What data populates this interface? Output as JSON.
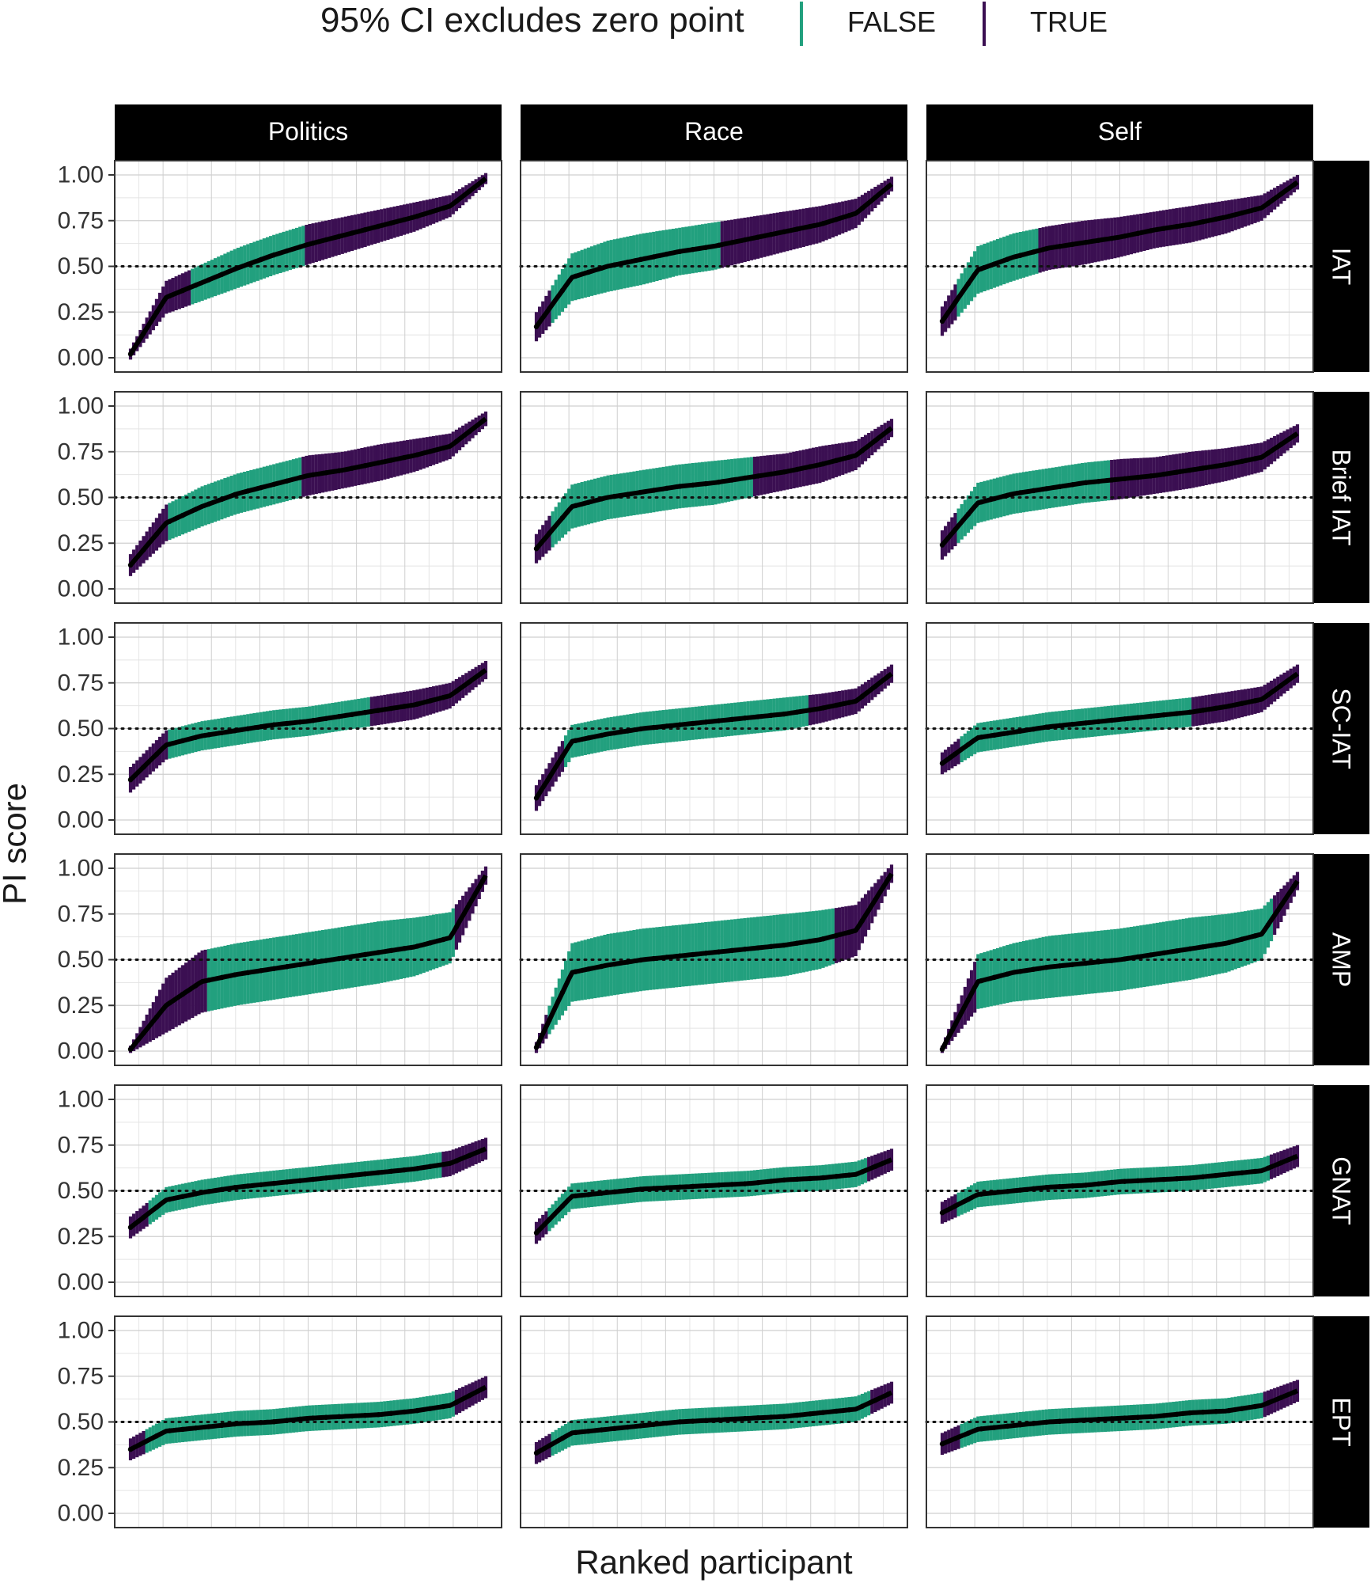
{
  "chart_data": {
    "type": "scatter",
    "chart_kind": "faceted ranked-participant point estimates with 95% CI error bars",
    "xlabel": "Ranked participant",
    "ylabel": "PI score",
    "ylim": [
      0,
      1
    ],
    "yticks": [
      "0.00",
      "0.25",
      "0.50",
      "0.75",
      "1.00"
    ],
    "reference_line": 0.5,
    "grid": true,
    "legend": {
      "title": "95% CI excludes zero point",
      "position": "top",
      "entries": [
        {
          "label": "FALSE",
          "color": "#22A07E"
        },
        {
          "label": "TRUE",
          "color": "#3B0F52"
        }
      ]
    },
    "point_color": "#000000",
    "columns": [
      "Politics",
      "Race",
      "Self"
    ],
    "rows": [
      "IAT",
      "Brief IAT",
      "SC-IAT",
      "AMP",
      "GNAT",
      "EPT"
    ],
    "panels": [
      {
        "row": "IAT",
        "column": "Politics",
        "x": [
          0,
          0.1,
          0.2,
          0.3,
          0.4,
          0.5,
          0.6,
          0.7,
          0.8,
          0.9,
          1
        ],
        "y": [
          0.02,
          0.33,
          0.41,
          0.49,
          0.56,
          0.62,
          0.67,
          0.72,
          0.77,
          0.83,
          0.98
        ],
        "halfwidth": [
          0.03,
          0.09,
          0.1,
          0.11,
          0.11,
          0.11,
          0.1,
          0.09,
          0.08,
          0.06,
          0.03
        ],
        "false_ranges": [
          [
            0.17,
            0.49
          ]
        ]
      },
      {
        "row": "IAT",
        "column": "Race",
        "x": [
          0,
          0.1,
          0.2,
          0.3,
          0.4,
          0.5,
          0.6,
          0.7,
          0.8,
          0.9,
          1
        ],
        "y": [
          0.17,
          0.44,
          0.5,
          0.54,
          0.58,
          0.61,
          0.65,
          0.69,
          0.73,
          0.79,
          0.95
        ],
        "halfwidth": [
          0.08,
          0.13,
          0.14,
          0.14,
          0.13,
          0.13,
          0.12,
          0.11,
          0.1,
          0.08,
          0.04
        ],
        "false_ranges": [
          [
            0.04,
            0.52
          ]
        ]
      },
      {
        "row": "IAT",
        "column": "Self",
        "x": [
          0,
          0.1,
          0.2,
          0.3,
          0.4,
          0.5,
          0.6,
          0.7,
          0.8,
          0.9,
          1
        ],
        "y": [
          0.2,
          0.48,
          0.55,
          0.6,
          0.63,
          0.66,
          0.7,
          0.73,
          0.77,
          0.82,
          0.96
        ],
        "halfwidth": [
          0.08,
          0.13,
          0.13,
          0.12,
          0.12,
          0.11,
          0.1,
          0.1,
          0.09,
          0.07,
          0.04
        ],
        "false_ranges": [
          [
            0.04,
            0.27
          ]
        ]
      },
      {
        "row": "Brief IAT",
        "column": "Politics",
        "x": [
          0,
          0.1,
          0.2,
          0.3,
          0.4,
          0.5,
          0.6,
          0.7,
          0.8,
          0.9,
          1
        ],
        "y": [
          0.13,
          0.36,
          0.45,
          0.52,
          0.57,
          0.62,
          0.65,
          0.69,
          0.73,
          0.78,
          0.93
        ],
        "halfwidth": [
          0.06,
          0.1,
          0.11,
          0.11,
          0.11,
          0.11,
          0.1,
          0.1,
          0.09,
          0.07,
          0.04
        ],
        "false_ranges": [
          [
            0.11,
            0.48
          ]
        ]
      },
      {
        "row": "Brief IAT",
        "column": "Race",
        "x": [
          0,
          0.1,
          0.2,
          0.3,
          0.4,
          0.5,
          0.6,
          0.7,
          0.8,
          0.9,
          1
        ],
        "y": [
          0.22,
          0.45,
          0.5,
          0.53,
          0.56,
          0.58,
          0.61,
          0.64,
          0.68,
          0.73,
          0.88
        ],
        "halfwidth": [
          0.08,
          0.12,
          0.12,
          0.12,
          0.12,
          0.12,
          0.11,
          0.1,
          0.1,
          0.08,
          0.05
        ],
        "false_ranges": [
          [
            0.04,
            0.61
          ]
        ]
      },
      {
        "row": "Brief IAT",
        "column": "Self",
        "x": [
          0,
          0.1,
          0.2,
          0.3,
          0.4,
          0.5,
          0.6,
          0.7,
          0.8,
          0.9,
          1
        ],
        "y": [
          0.24,
          0.47,
          0.52,
          0.55,
          0.58,
          0.6,
          0.62,
          0.65,
          0.68,
          0.72,
          0.85
        ],
        "halfwidth": [
          0.08,
          0.11,
          0.11,
          0.11,
          0.11,
          0.11,
          0.1,
          0.1,
          0.09,
          0.08,
          0.05
        ],
        "false_ranges": [
          [
            0.04,
            0.47
          ]
        ]
      },
      {
        "row": "SC-IAT",
        "column": "Politics",
        "x": [
          0,
          0.1,
          0.2,
          0.3,
          0.4,
          0.5,
          0.6,
          0.7,
          0.8,
          0.9,
          1
        ],
        "y": [
          0.22,
          0.41,
          0.46,
          0.49,
          0.52,
          0.54,
          0.57,
          0.6,
          0.63,
          0.68,
          0.82
        ],
        "halfwidth": [
          0.07,
          0.08,
          0.08,
          0.08,
          0.08,
          0.08,
          0.08,
          0.08,
          0.08,
          0.07,
          0.05
        ],
        "false_ranges": [
          [
            0.11,
            0.67
          ]
        ]
      },
      {
        "row": "SC-IAT",
        "column": "Race",
        "x": [
          0,
          0.1,
          0.2,
          0.3,
          0.4,
          0.5,
          0.6,
          0.7,
          0.8,
          0.9,
          1
        ],
        "y": [
          0.12,
          0.43,
          0.47,
          0.5,
          0.52,
          0.54,
          0.56,
          0.58,
          0.61,
          0.65,
          0.8
        ],
        "halfwidth": [
          0.07,
          0.09,
          0.09,
          0.09,
          0.09,
          0.09,
          0.09,
          0.09,
          0.08,
          0.07,
          0.05
        ],
        "false_ranges": [
          [
            0.08,
            0.77
          ]
        ]
      },
      {
        "row": "SC-IAT",
        "column": "Self",
        "x": [
          0,
          0.1,
          0.2,
          0.3,
          0.4,
          0.5,
          0.6,
          0.7,
          0.8,
          0.9,
          1
        ],
        "y": [
          0.31,
          0.45,
          0.48,
          0.51,
          0.53,
          0.55,
          0.57,
          0.59,
          0.62,
          0.66,
          0.8
        ],
        "halfwidth": [
          0.06,
          0.08,
          0.08,
          0.08,
          0.08,
          0.08,
          0.08,
          0.08,
          0.08,
          0.07,
          0.05
        ],
        "false_ranges": [
          [
            0.05,
            0.7
          ]
        ]
      },
      {
        "row": "AMP",
        "column": "Politics",
        "x": [
          0,
          0.1,
          0.2,
          0.3,
          0.4,
          0.5,
          0.6,
          0.7,
          0.8,
          0.9,
          1
        ],
        "y": [
          0.01,
          0.25,
          0.38,
          0.42,
          0.45,
          0.48,
          0.51,
          0.54,
          0.57,
          0.62,
          0.96
        ],
        "halfwidth": [
          0.02,
          0.15,
          0.17,
          0.17,
          0.17,
          0.17,
          0.17,
          0.17,
          0.16,
          0.14,
          0.05
        ],
        "false_ranges": [
          [
            0.22,
            0.91
          ]
        ]
      },
      {
        "row": "AMP",
        "column": "Race",
        "x": [
          0,
          0.1,
          0.2,
          0.3,
          0.4,
          0.5,
          0.6,
          0.7,
          0.8,
          0.9,
          1
        ],
        "y": [
          0.02,
          0.43,
          0.47,
          0.5,
          0.52,
          0.54,
          0.56,
          0.58,
          0.61,
          0.66,
          0.97
        ],
        "halfwidth": [
          0.03,
          0.16,
          0.17,
          0.17,
          0.17,
          0.17,
          0.17,
          0.17,
          0.16,
          0.14,
          0.05
        ],
        "false_ranges": [
          [
            0.03,
            0.84
          ]
        ]
      },
      {
        "row": "AMP",
        "column": "Self",
        "x": [
          0,
          0.1,
          0.2,
          0.3,
          0.4,
          0.5,
          0.6,
          0.7,
          0.8,
          0.9,
          1
        ],
        "y": [
          0.01,
          0.38,
          0.43,
          0.46,
          0.48,
          0.5,
          0.53,
          0.56,
          0.59,
          0.64,
          0.93
        ],
        "halfwidth": [
          0.02,
          0.15,
          0.16,
          0.17,
          0.17,
          0.17,
          0.17,
          0.17,
          0.16,
          0.14,
          0.05
        ],
        "false_ranges": [
          [
            0.1,
            0.93
          ]
        ]
      },
      {
        "row": "GNAT",
        "column": "Politics",
        "x": [
          0,
          0.1,
          0.2,
          0.3,
          0.4,
          0.5,
          0.6,
          0.7,
          0.8,
          0.9,
          1
        ],
        "y": [
          0.3,
          0.45,
          0.49,
          0.52,
          0.54,
          0.56,
          0.58,
          0.6,
          0.62,
          0.65,
          0.73
        ],
        "halfwidth": [
          0.06,
          0.07,
          0.07,
          0.07,
          0.07,
          0.07,
          0.07,
          0.07,
          0.07,
          0.07,
          0.06
        ],
        "false_ranges": [
          [
            0.05,
            0.88
          ]
        ]
      },
      {
        "row": "GNAT",
        "column": "Race",
        "x": [
          0,
          0.1,
          0.2,
          0.3,
          0.4,
          0.5,
          0.6,
          0.7,
          0.8,
          0.9,
          1
        ],
        "y": [
          0.27,
          0.47,
          0.49,
          0.51,
          0.52,
          0.53,
          0.54,
          0.56,
          0.57,
          0.59,
          0.67
        ],
        "halfwidth": [
          0.06,
          0.07,
          0.07,
          0.07,
          0.07,
          0.07,
          0.07,
          0.07,
          0.07,
          0.07,
          0.06
        ],
        "false_ranges": [
          [
            0.03,
            0.93
          ]
        ]
      },
      {
        "row": "GNAT",
        "column": "Self",
        "x": [
          0,
          0.1,
          0.2,
          0.3,
          0.4,
          0.5,
          0.6,
          0.7,
          0.8,
          0.9,
          1
        ],
        "y": [
          0.38,
          0.48,
          0.5,
          0.52,
          0.53,
          0.55,
          0.56,
          0.57,
          0.59,
          0.61,
          0.69
        ],
        "halfwidth": [
          0.06,
          0.07,
          0.07,
          0.07,
          0.07,
          0.07,
          0.07,
          0.07,
          0.07,
          0.07,
          0.06
        ],
        "false_ranges": [
          [
            0.04,
            0.92
          ]
        ]
      },
      {
        "row": "EPT",
        "column": "Politics",
        "x": [
          0,
          0.1,
          0.2,
          0.3,
          0.4,
          0.5,
          0.6,
          0.7,
          0.8,
          0.9,
          1
        ],
        "y": [
          0.35,
          0.45,
          0.47,
          0.49,
          0.5,
          0.52,
          0.53,
          0.54,
          0.56,
          0.59,
          0.69
        ],
        "halfwidth": [
          0.06,
          0.07,
          0.07,
          0.07,
          0.07,
          0.07,
          0.07,
          0.07,
          0.07,
          0.07,
          0.06
        ],
        "false_ranges": [
          [
            0.04,
            0.91
          ]
        ]
      },
      {
        "row": "EPT",
        "column": "Race",
        "x": [
          0,
          0.1,
          0.2,
          0.3,
          0.4,
          0.5,
          0.6,
          0.7,
          0.8,
          0.9,
          1
        ],
        "y": [
          0.33,
          0.44,
          0.46,
          0.48,
          0.5,
          0.51,
          0.52,
          0.53,
          0.55,
          0.57,
          0.66
        ],
        "halfwidth": [
          0.06,
          0.07,
          0.07,
          0.07,
          0.07,
          0.07,
          0.07,
          0.07,
          0.07,
          0.07,
          0.06
        ],
        "false_ranges": [
          [
            0.04,
            0.94
          ]
        ]
      },
      {
        "row": "EPT",
        "column": "Self",
        "x": [
          0,
          0.1,
          0.2,
          0.3,
          0.4,
          0.5,
          0.6,
          0.7,
          0.8,
          0.9,
          1
        ],
        "y": [
          0.38,
          0.46,
          0.48,
          0.5,
          0.51,
          0.52,
          0.53,
          0.55,
          0.56,
          0.59,
          0.67
        ],
        "halfwidth": [
          0.06,
          0.07,
          0.07,
          0.07,
          0.07,
          0.07,
          0.07,
          0.07,
          0.07,
          0.07,
          0.06
        ],
        "false_ranges": [
          [
            0.05,
            0.9
          ]
        ]
      }
    ]
  }
}
